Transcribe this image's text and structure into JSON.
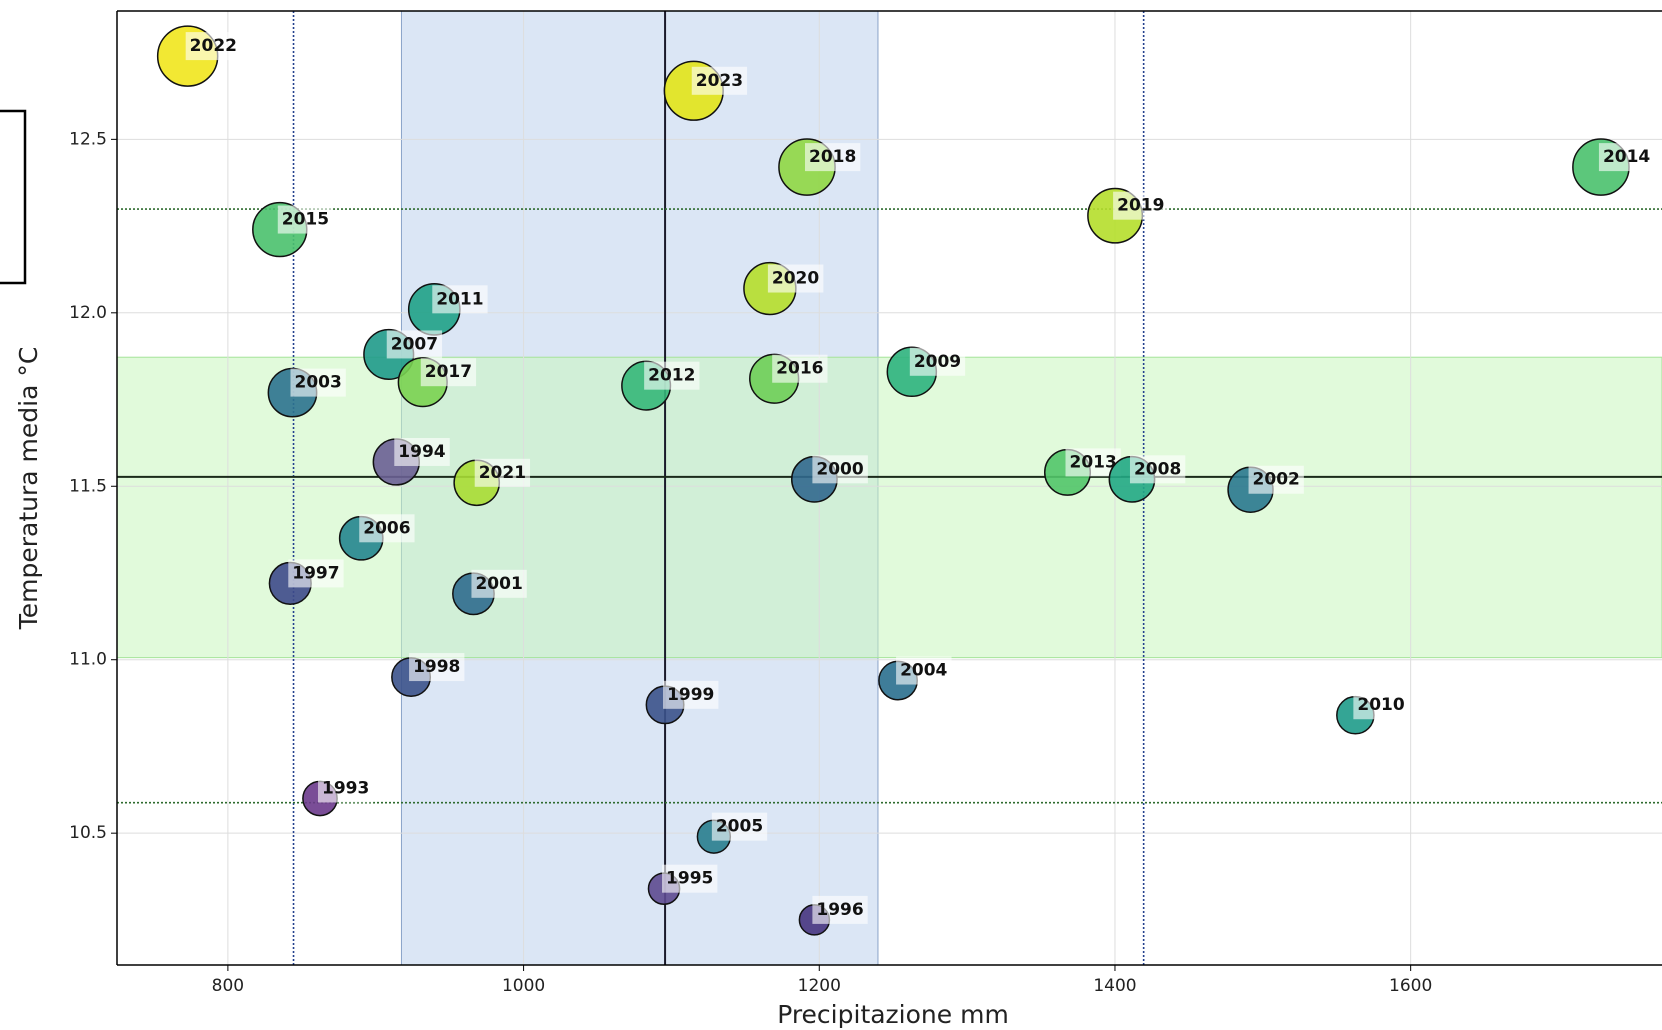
{
  "chart_data": {
    "type": "scatter",
    "xlabel": "Precipitazione mm",
    "ylabel": "Temperatura media °C",
    "labels": [
      "2022",
      "2023",
      "2018",
      "2014",
      "2015",
      "2019",
      "2020",
      "2011",
      "2007",
      "2017",
      "2003",
      "2012",
      "2016",
      "2009",
      "1994",
      "2021",
      "2000",
      "2013",
      "2008",
      "2002",
      "2006",
      "1997",
      "2001",
      "1998",
      "2004",
      "1999",
      "2010",
      "1993",
      "2005",
      "1995",
      "1996"
    ],
    "x": [
      772.8,
      1115.1,
      1191.7,
      1728.7,
      835.1,
      1400.1,
      1166.6,
      939.6,
      908.8,
      931.8,
      843.7,
      1082.9,
      1169.5,
      1262.6,
      913.9,
      968.3,
      1196.7,
      1367.9,
      1411.5,
      1491.7,
      890.2,
      842.2,
      966.1,
      923.9,
      1253.3,
      1095.7,
      1562.6,
      862.3,
      1128.7,
      1095.0,
      1196.7
    ],
    "y": [
      12.74,
      12.64,
      12.42,
      12.42,
      12.24,
      12.28,
      12.07,
      12.01,
      11.88,
      11.8,
      11.77,
      11.79,
      11.81,
      11.83,
      11.57,
      11.51,
      11.52,
      11.54,
      11.52,
      11.49,
      11.35,
      11.22,
      11.19,
      10.95,
      10.94,
      10.87,
      10.84,
      10.6,
      10.49,
      10.34,
      10.25
    ],
    "colors": [
      "#f1e51d",
      "#e2e418",
      "#8fd744",
      "#4ac16d",
      "#4ac16d",
      "#b5de2b",
      "#b5de2b",
      "#1fa187",
      "#1f9a8a",
      "#7ad151",
      "#2c728e",
      "#35b779",
      "#6ece58",
      "#2db27d",
      "#6a5f94",
      "#a8db34",
      "#31688e",
      "#52c569",
      "#22a884",
      "#2a788e",
      "#25858e",
      "#3e4a89",
      "#2f6b8e",
      "#3b528b",
      "#2a6f8e",
      "#3b528b",
      "#1e9b8a",
      "#6b3a8c",
      "#287d8e",
      "#5d4a90",
      "#463480"
    ],
    "xlim": [
      725,
      1770
    ],
    "ylim": [
      10.12,
      12.87
    ],
    "xticks": [
      800,
      1000,
      1200,
      1400,
      1600
    ],
    "yticks": [
      10.5,
      {
        "value": 11,
        "label": "11.0"
      },
      11.5,
      {
        "value": 12,
        "label": "12.0"
      },
      12.5
    ],
    "grid": true,
    "vbands": [
      {
        "from": 917.4,
        "to": 1239.7,
        "color": "#c3d5ee"
      }
    ],
    "hbands": [
      {
        "from": 11.006,
        "to": 11.872,
        "color": "#c8f5bd"
      }
    ],
    "vlines": [
      {
        "value": 1095.7,
        "style": "solid",
        "color": "#1a1a2a"
      },
      {
        "value": 844.4,
        "style": "dotted",
        "color": "#23408e"
      },
      {
        "value": 1419.4,
        "style": "dotted",
        "color": "#23408e"
      }
    ],
    "hlines": [
      {
        "value": 11.527,
        "style": "solid",
        "color": "#1a2a1a"
      },
      {
        "value": 12.299,
        "style": "dotted",
        "color": "#2e6b2e"
      },
      {
        "value": 10.588,
        "style": "dotted",
        "color": "#2e6b2e"
      }
    ]
  }
}
